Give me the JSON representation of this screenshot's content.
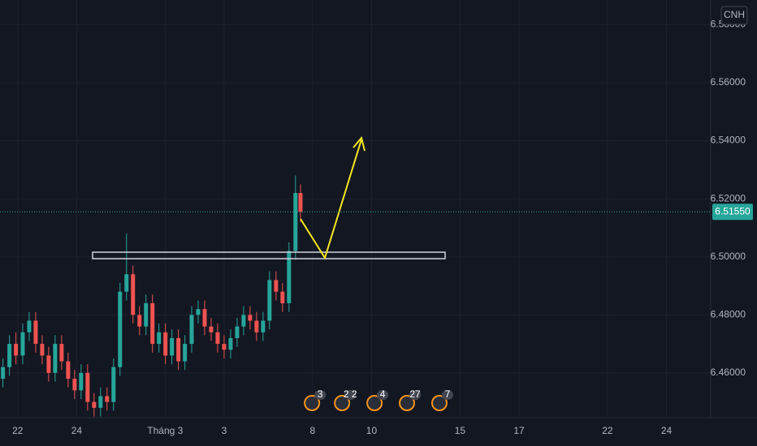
{
  "chart_data": {
    "type": "candlestick",
    "symbol_label": "CNH",
    "x": [
      -0.5,
      -0.28,
      -0.06,
      0.17,
      0.39,
      0.61,
      0.83,
      1.05,
      1.27,
      1.49,
      1.71,
      1.93,
      2.15,
      2.37,
      2.59,
      2.81,
      3.03,
      3.25,
      3.47,
      3.69,
      3.91,
      4.13,
      4.35,
      4.57,
      4.79,
      5.01,
      5.23,
      5.45,
      5.67,
      5.9,
      6.12,
      6.34,
      6.56,
      6.78,
      7.0,
      7.22,
      7.44,
      7.66,
      7.88,
      8.1,
      8.32,
      8.54,
      8.76,
      8.98,
      9.2,
      9.42,
      9.59
    ],
    "open": [
      6.458,
      6.462,
      6.47,
      6.466,
      6.474,
      6.478,
      6.47,
      6.466,
      6.46,
      6.47,
      6.464,
      6.458,
      6.454,
      6.46,
      6.45,
      6.448,
      6.452,
      6.45,
      6.462,
      6.488,
      6.494,
      6.48,
      6.476,
      6.484,
      6.47,
      6.474,
      6.466,
      6.472,
      6.464,
      6.47,
      6.48,
      6.482,
      6.476,
      6.474,
      6.47,
      6.468,
      6.472,
      6.476,
      6.48,
      6.478,
      6.474,
      6.478,
      6.492,
      6.488,
      6.484,
      6.502,
      6.522
    ],
    "high": [
      6.465,
      6.473,
      6.474,
      6.477,
      6.481,
      6.481,
      6.473,
      6.469,
      6.473,
      6.473,
      6.467,
      6.461,
      6.463,
      6.463,
      6.453,
      6.455,
      6.455,
      6.465,
      6.491,
      6.508,
      6.497,
      6.483,
      6.487,
      6.487,
      6.477,
      6.477,
      6.475,
      6.475,
      6.473,
      6.483,
      6.485,
      6.485,
      6.479,
      6.477,
      6.473,
      6.475,
      6.479,
      6.483,
      6.483,
      6.481,
      6.481,
      6.495,
      6.495,
      6.491,
      6.505,
      6.528,
      6.525
    ],
    "low": [
      6.455,
      6.459,
      6.463,
      6.463,
      6.471,
      6.467,
      6.463,
      6.457,
      6.457,
      6.461,
      6.455,
      6.451,
      6.451,
      6.447,
      6.445,
      6.445,
      6.447,
      6.447,
      6.459,
      6.485,
      6.477,
      6.473,
      6.473,
      6.467,
      6.467,
      6.463,
      6.463,
      6.461,
      6.461,
      6.467,
      6.477,
      6.473,
      6.471,
      6.467,
      6.465,
      6.465,
      6.469,
      6.473,
      6.475,
      6.471,
      6.471,
      6.475,
      6.485,
      6.481,
      6.481,
      6.499,
      6.512
    ],
    "close": [
      6.462,
      6.47,
      6.466,
      6.474,
      6.478,
      6.47,
      6.466,
      6.46,
      6.47,
      6.464,
      6.458,
      6.454,
      6.46,
      6.45,
      6.448,
      6.452,
      6.45,
      6.462,
      6.488,
      6.494,
      6.48,
      6.476,
      6.484,
      6.47,
      6.474,
      6.466,
      6.472,
      6.464,
      6.47,
      6.48,
      6.482,
      6.476,
      6.474,
      6.47,
      6.468,
      6.472,
      6.476,
      6.48,
      6.478,
      6.474,
      6.478,
      6.492,
      6.488,
      6.484,
      6.502,
      6.522,
      6.5155
    ],
    "up_color": "#26a69a",
    "down_color": "#ef5350",
    "last_price": 6.5155,
    "last_price_label": "6.51550",
    "xlim": [
      -0.6,
      23.5
    ],
    "xticks": [
      {
        "value": 0,
        "label": "22"
      },
      {
        "value": 2,
        "label": "24"
      },
      {
        "value": 5,
        "label": "Tháng 3"
      },
      {
        "value": 7,
        "label": "3"
      },
      {
        "value": 10,
        "label": "8"
      },
      {
        "value": 12,
        "label": "10"
      },
      {
        "value": 15,
        "label": "15"
      },
      {
        "value": 17,
        "label": "17"
      },
      {
        "value": 20,
        "label": "22"
      },
      {
        "value": 22,
        "label": "24"
      }
    ],
    "ylim": [
      6.4446,
      6.5885
    ],
    "yticks": [
      {
        "value": 6.46,
        "label": "6.46000"
      },
      {
        "value": 6.48,
        "label": "6.48000"
      },
      {
        "value": 6.5,
        "label": "6.50000"
      },
      {
        "value": 6.52,
        "label": "6.52000"
      },
      {
        "value": 6.54,
        "label": "6.54000"
      },
      {
        "value": 6.56,
        "label": "6.56000"
      },
      {
        "value": 6.58,
        "label": "6.58000"
      }
    ],
    "grid": true,
    "events": [
      {
        "x": 9.98,
        "label": "3"
      },
      {
        "x": 11.0,
        "label": "2 2"
      },
      {
        "x": 12.1,
        "label": "4"
      },
      {
        "x": 13.2,
        "label": "27"
      },
      {
        "x": 14.3,
        "label": "7"
      }
    ]
  }
}
